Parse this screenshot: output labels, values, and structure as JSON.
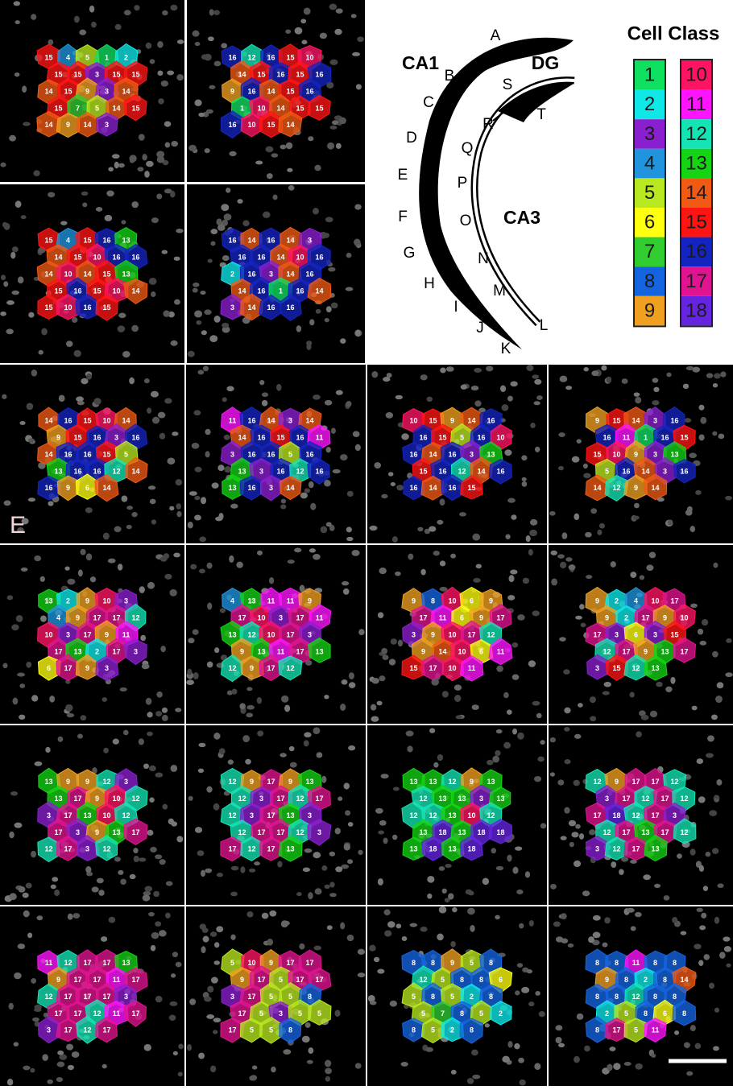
{
  "panel_label": "E",
  "diagram": {
    "regions": [
      "CA1",
      "DG",
      "CA3"
    ],
    "letters": [
      "A",
      "B",
      "C",
      "D",
      "E",
      "F",
      "G",
      "H",
      "I",
      "J",
      "K",
      "L",
      "M",
      "N",
      "O",
      "P",
      "Q",
      "R",
      "S",
      "T"
    ]
  },
  "legend": {
    "title": "Cell Class",
    "classes": [
      {
        "id": 1,
        "color": "#10e060"
      },
      {
        "id": 2,
        "color": "#10e8e8"
      },
      {
        "id": 3,
        "color": "#8a1fd0"
      },
      {
        "id": 4,
        "color": "#2094dc"
      },
      {
        "id": 5,
        "color": "#b8e820"
      },
      {
        "id": 6,
        "color": "#ffff10"
      },
      {
        "id": 7,
        "color": "#30cc30"
      },
      {
        "id": 8,
        "color": "#1464e0"
      },
      {
        "id": 9,
        "color": "#f0a020"
      },
      {
        "id": 10,
        "color": "#ff1464"
      },
      {
        "id": 11,
        "color": "#ff14ff"
      },
      {
        "id": 12,
        "color": "#14e4b4"
      },
      {
        "id": 13,
        "color": "#14d414"
      },
      {
        "id": 14,
        "color": "#f05a14"
      },
      {
        "id": 15,
        "color": "#ff1414"
      },
      {
        "id": 16,
        "color": "#1424c0"
      },
      {
        "id": 17,
        "color": "#e01490"
      },
      {
        "id": 18,
        "color": "#6424e0"
      }
    ]
  },
  "panels": [
    {
      "cells": [
        15,
        4,
        5,
        1,
        2,
        15,
        15,
        3,
        15,
        15,
        14,
        15,
        9,
        3,
        14,
        15,
        7,
        5,
        14,
        15,
        14,
        9,
        14,
        3
      ]
    },
    {
      "cells": [
        16,
        12,
        16,
        15,
        10,
        14,
        15,
        16,
        15,
        16,
        9,
        16,
        14,
        15,
        16,
        1,
        10,
        14,
        15,
        15,
        16,
        10,
        15,
        14
      ]
    },
    {
      "cells": [
        15,
        4,
        15,
        16,
        13,
        14,
        15,
        10,
        16,
        16,
        14,
        10,
        14,
        15,
        13,
        15,
        16,
        15,
        10,
        14,
        15,
        10,
        16,
        15
      ]
    },
    {
      "cells": [
        16,
        14,
        16,
        14,
        3,
        16,
        16,
        14,
        10,
        16,
        2,
        16,
        3,
        14,
        16,
        14,
        16,
        1,
        16,
        14,
        3,
        14,
        16,
        16
      ]
    },
    {
      "cells": [
        14,
        16,
        15,
        10,
        14,
        9,
        15,
        16,
        3,
        16,
        14,
        16,
        16,
        15,
        5,
        13,
        16,
        16,
        12,
        14,
        16,
        9,
        6,
        14
      ]
    },
    {
      "cells": [
        11,
        16,
        14,
        3,
        14,
        14,
        16,
        15,
        16,
        11,
        3,
        16,
        16,
        5,
        16,
        13,
        3,
        16,
        12,
        16,
        13,
        16,
        3,
        14
      ]
    },
    {
      "cells": [
        10,
        15,
        9,
        14,
        16,
        16,
        15,
        5,
        16,
        10,
        16,
        14,
        16,
        3,
        13,
        15,
        16,
        12,
        14,
        16,
        16,
        14,
        16,
        15
      ]
    },
    {
      "cells": [
        9,
        15,
        14,
        3,
        16,
        16,
        11,
        1,
        16,
        15,
        15,
        10,
        9,
        3,
        13,
        5,
        16,
        14,
        3,
        16,
        14,
        12,
        9,
        14
      ]
    },
    {
      "cells": [
        13,
        2,
        9,
        10,
        3,
        4,
        9,
        17,
        17,
        12,
        10,
        3,
        17,
        9,
        11,
        17,
        13,
        2,
        17,
        3,
        6,
        17,
        9,
        3
      ]
    },
    {
      "cells": [
        4,
        13,
        11,
        11,
        9,
        17,
        10,
        3,
        17,
        11,
        13,
        12,
        10,
        17,
        3,
        9,
        13,
        11,
        17,
        13,
        12,
        9,
        17,
        12
      ]
    },
    {
      "cells": [
        9,
        8,
        10,
        6,
        9,
        17,
        11,
        6,
        9,
        17,
        3,
        9,
        10,
        17,
        12,
        9,
        14,
        10,
        6,
        11,
        15,
        17,
        10,
        11
      ]
    },
    {
      "cells": [
        9,
        2,
        4,
        10,
        17,
        9,
        2,
        17,
        9,
        10,
        17,
        3,
        6,
        3,
        15,
        12,
        17,
        9,
        13,
        17,
        3,
        15,
        12,
        13
      ]
    },
    {
      "cells": [
        13,
        9,
        9,
        12,
        3,
        13,
        17,
        9,
        10,
        12,
        3,
        17,
        13,
        10,
        12,
        17,
        3,
        9,
        13,
        17,
        12,
        17,
        3,
        12
      ]
    },
    {
      "cells": [
        12,
        9,
        17,
        9,
        13,
        12,
        3,
        17,
        12,
        17,
        12,
        3,
        17,
        13,
        3,
        12,
        17,
        17,
        12,
        3,
        17,
        12,
        17,
        13
      ]
    },
    {
      "cells": [
        13,
        13,
        12,
        9,
        13,
        12,
        13,
        13,
        3,
        13,
        12,
        12,
        13,
        10,
        12,
        13,
        18,
        13,
        18,
        18,
        13,
        18,
        13,
        18
      ]
    },
    {
      "cells": [
        12,
        9,
        17,
        17,
        12,
        3,
        17,
        12,
        17,
        12,
        17,
        18,
        12,
        17,
        3,
        12,
        17,
        13,
        17,
        12,
        3,
        12,
        17,
        13
      ]
    },
    {
      "cells": [
        11,
        12,
        17,
        17,
        13,
        9,
        17,
        17,
        11,
        17,
        12,
        17,
        17,
        17,
        3,
        17,
        17,
        12,
        11,
        17,
        3,
        17,
        12,
        17
      ]
    },
    {
      "cells": [
        5,
        10,
        9,
        17,
        17,
        9,
        17,
        5,
        17,
        17,
        3,
        17,
        5,
        5,
        8,
        17,
        5,
        3,
        5,
        5,
        17,
        5,
        5,
        8
      ]
    },
    {
      "cells": [
        8,
        8,
        9,
        5,
        8,
        12,
        5,
        8,
        8,
        6,
        5,
        8,
        5,
        2,
        8,
        5,
        7,
        8,
        5,
        2,
        8,
        5,
        2,
        8
      ]
    },
    {
      "cells": [
        8,
        8,
        11,
        8,
        8,
        9,
        8,
        2,
        8,
        14,
        8,
        8,
        12,
        8,
        8,
        2,
        5,
        8,
        6,
        8,
        8,
        17,
        5,
        11
      ]
    }
  ]
}
